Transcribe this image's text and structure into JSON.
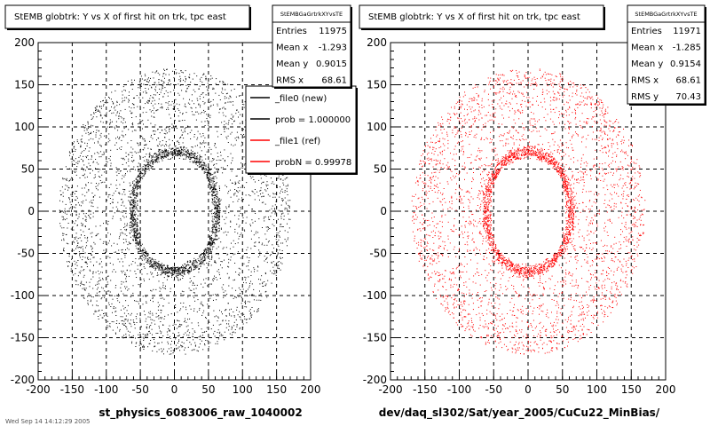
{
  "footer_text": "Wed Sep 14 14:12:29 2005",
  "chart_data": [
    {
      "type": "scatter",
      "title": "StEMB globtrk: Y vs X of first hit on trk, tpc east",
      "xlabel": "st_physics_6083006_raw_1040002",
      "ylabel": "",
      "xlim": [
        -200,
        200
      ],
      "ylim": [
        -200,
        200
      ],
      "xticks": [
        "-200",
        "-150",
        "-100",
        "-50",
        "0",
        "50",
        "100",
        "150",
        "200"
      ],
      "yticks": [
        "-200",
        "-150",
        "-100",
        "-50",
        "0",
        "50",
        "100",
        "150",
        "200"
      ],
      "grid": true,
      "color": "#000000",
      "stats": {
        "name": "StEMBGaGrtrkXYvsTE",
        "rows": [
          {
            "label": "Entries",
            "value": "11975"
          },
          {
            "label": "Mean x",
            "value": "-1.293"
          },
          {
            "label": "Mean y",
            "value": "0.9015"
          },
          {
            "label": "RMS x",
            "value": "68.61"
          }
        ]
      },
      "legend": {
        "placement": "top-right",
        "entries": [
          {
            "label": "_file0 (new)",
            "color": "#000000"
          },
          {
            "label": "prob = 1.000000",
            "color": "#000000"
          },
          {
            "label": "_file1 (ref)",
            "color": "#ff0000"
          },
          {
            "label": "probN = 0.99978",
            "color": "#ff0000"
          }
        ]
      },
      "distribution": {
        "hole_x_range": [
          -50,
          50
        ],
        "hole_y_range": [
          -58,
          58
        ],
        "dense_ring_outer_x": 57,
        "dense_ring_outer_y": 66,
        "outer_ring_radius_range": [
          90,
          170
        ]
      }
    },
    {
      "type": "scatter",
      "title": "StEMB globtrk: Y vs X of first hit on trk, tpc east",
      "xlabel": "dev/daq_sl302/Sat/year_2005/CuCu22_MinBias/",
      "ylabel": "",
      "xlim": [
        -200,
        200
      ],
      "ylim": [
        -200,
        200
      ],
      "xticks": [
        "-200",
        "-150",
        "-100",
        "-50",
        "0",
        "50",
        "100",
        "150",
        "200"
      ],
      "yticks": [
        "-200",
        "-150",
        "-100",
        "-50",
        "0",
        "50",
        "100",
        "150",
        "200"
      ],
      "grid": true,
      "color": "#ff0000",
      "stats": {
        "name": "StEMBGaGrtrkXYvsTE",
        "rows": [
          {
            "label": "Entries",
            "value": "11971"
          },
          {
            "label": "Mean x",
            "value": "-1.285"
          },
          {
            "label": "Mean y",
            "value": "0.9154"
          },
          {
            "label": "RMS x",
            "value": "68.61"
          },
          {
            "label": "RMS y",
            "value": "70.43"
          }
        ]
      },
      "distribution": {
        "hole_x_range": [
          -50,
          50
        ],
        "hole_y_range": [
          -58,
          58
        ],
        "dense_ring_outer_x": 57,
        "dense_ring_outer_y": 66,
        "outer_ring_radius_range": [
          90,
          170
        ]
      }
    }
  ]
}
